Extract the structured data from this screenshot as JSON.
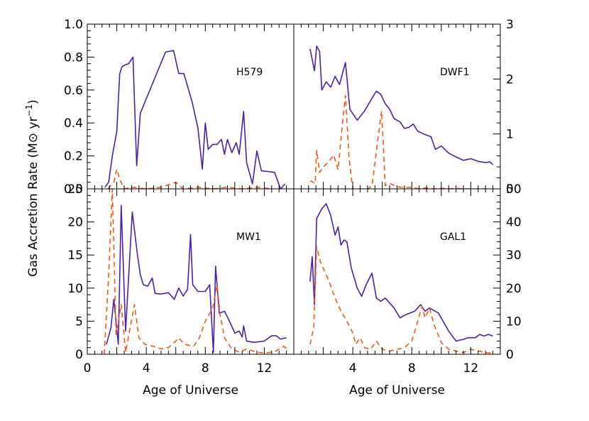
{
  "figure": {
    "ylabel_prefix": "Gas Accretion Rate (M",
    "ylabel_sun": "⊙",
    "ylabel_mid": " yr",
    "ylabel_sup": "−1",
    "ylabel_suffix": ")"
  },
  "chart_data": [
    {
      "type": "line",
      "label": "H579",
      "xlabel": "",
      "xlim": [
        0,
        14
      ],
      "ylim": [
        0,
        1.0
      ],
      "y_axis_side": "left",
      "yticks": [
        "0.0",
        "0.2",
        "0.4",
        "0.6",
        "0.8",
        "1.0"
      ],
      "ytick_values": [
        0,
        0.2,
        0.4,
        0.6,
        0.8,
        1.0
      ],
      "series": [
        {
          "style": "solid",
          "color": "#4a1fb5",
          "x": [
            1.2,
            1.45,
            1.7,
            2.0,
            2.2,
            2.35,
            2.5,
            2.8,
            3.1,
            3.35,
            3.6,
            5.3,
            5.85,
            6.2,
            6.55,
            7.1,
            7.5,
            7.8,
            8.0,
            8.2,
            8.5,
            8.8,
            9.1,
            9.3,
            9.5,
            9.8,
            10.1,
            10.3,
            10.6,
            10.8,
            11.2,
            11.5,
            11.8,
            12.7,
            13.1,
            13.4
          ],
          "y": [
            0.01,
            0.04,
            0.2,
            0.35,
            0.7,
            0.74,
            0.75,
            0.76,
            0.8,
            0.14,
            0.46,
            0.83,
            0.84,
            0.7,
            0.7,
            0.53,
            0.37,
            0.12,
            0.4,
            0.24,
            0.27,
            0.27,
            0.3,
            0.21,
            0.3,
            0.22,
            0.28,
            0.21,
            0.47,
            0.16,
            0.03,
            0.23,
            0.11,
            0.1,
            0.0,
            0.03
          ]
        },
        {
          "style": "dashed",
          "color": "#ff5511",
          "x": [
            1.4,
            1.8,
            2.0,
            2.2,
            2.5,
            3.0,
            4.0,
            5.0,
            6.0,
            6.5,
            7.5,
            8.5,
            9.5,
            10.5,
            11.5,
            12.5
          ],
          "y": [
            0.0,
            0.04,
            0.12,
            0.06,
            0.0,
            0.01,
            0.0,
            0.01,
            0.04,
            0.0,
            0.01,
            0.0,
            0.01,
            0.0,
            0.01,
            0.0
          ]
        }
      ]
    },
    {
      "type": "line",
      "label": "DWF1",
      "xlabel": "",
      "xlim": [
        0,
        14
      ],
      "ylim": [
        0,
        3
      ],
      "y_axis_side": "right",
      "yticks": [
        "0",
        "1",
        "2",
        "3"
      ],
      "ytick_values": [
        0,
        1,
        2,
        3
      ],
      "series": [
        {
          "style": "solid",
          "color": "#4a1fb5",
          "x": [
            1.1,
            1.4,
            1.55,
            1.75,
            1.9,
            2.2,
            2.5,
            2.8,
            3.1,
            3.5,
            3.8,
            4.3,
            4.8,
            5.3,
            5.6,
            5.9,
            6.2,
            6.5,
            6.8,
            7.2,
            7.5,
            7.8,
            8.1,
            8.4,
            8.8,
            9.0,
            9.3,
            9.6,
            10.0,
            10.5,
            11.0,
            11.5,
            12.0,
            12.5,
            13.0,
            13.3,
            13.5
          ],
          "y": [
            2.55,
            2.15,
            2.6,
            2.5,
            1.8,
            1.95,
            1.85,
            2.05,
            1.9,
            2.3,
            1.45,
            1.25,
            1.42,
            1.65,
            1.78,
            1.72,
            1.55,
            1.45,
            1.28,
            1.22,
            1.1,
            1.12,
            1.18,
            1.05,
            1.0,
            0.98,
            0.95,
            0.72,
            0.78,
            0.65,
            0.58,
            0.52,
            0.55,
            0.5,
            0.48,
            0.49,
            0.44
          ]
        },
        {
          "style": "dashed",
          "color": "#ff5511",
          "x": [
            1.1,
            1.45,
            1.55,
            1.75,
            2.0,
            2.4,
            2.7,
            3.0,
            3.3,
            3.5,
            3.75,
            4.0,
            4.5,
            5.0,
            5.3,
            5.7,
            5.95,
            6.2,
            6.5,
            7.0,
            7.5,
            8.0,
            8.5,
            9.0,
            9.5,
            10.0,
            10.5,
            11.0,
            11.5,
            12.0,
            12.5,
            13.0
          ],
          "y": [
            0.15,
            0.1,
            0.7,
            0.3,
            0.4,
            0.5,
            0.62,
            0.35,
            1.2,
            1.7,
            0.55,
            0.0,
            0.0,
            0.0,
            0.05,
            0.9,
            1.42,
            0.06,
            0.1,
            0.04,
            0.02,
            0.03,
            0.0,
            0.02,
            0.0,
            0.01,
            0.0,
            0.01,
            0.0,
            0.0,
            0.0,
            0.0
          ]
        }
      ]
    },
    {
      "type": "line",
      "label": "MW1",
      "xlabel": "Age of Universe",
      "xlim": [
        0,
        14
      ],
      "ylim": [
        0,
        25
      ],
      "y_axis_side": "left",
      "xticks": [
        "0",
        "4",
        "8",
        "12"
      ],
      "xtick_values": [
        0,
        4,
        8,
        12
      ],
      "yticks": [
        "0",
        "5",
        "10",
        "15",
        "20",
        "25"
      ],
      "ytick_values": [
        0,
        5,
        10,
        15,
        20,
        25
      ],
      "series": [
        {
          "style": "solid",
          "color": "#4a1fb5",
          "x": [
            1.3,
            1.6,
            1.8,
            2.1,
            2.3,
            2.6,
            3.05,
            3.4,
            3.6,
            3.8,
            4.1,
            4.4,
            4.6,
            5.0,
            5.5,
            5.9,
            6.2,
            6.5,
            6.8,
            7.0,
            7.15,
            7.5,
            8.0,
            8.3,
            8.55,
            8.7,
            8.95,
            9.3,
            9.6,
            10.0,
            10.3,
            10.5,
            10.6,
            10.8,
            11.3,
            12.0,
            12.5,
            12.8,
            13.1,
            13.5
          ],
          "y": [
            1.5,
            4.0,
            8.3,
            1.5,
            22.5,
            3.5,
            21.5,
            15.0,
            12.0,
            10.5,
            10.3,
            11.5,
            9.2,
            9.1,
            9.3,
            8.3,
            10.0,
            8.8,
            9.8,
            18.1,
            10.5,
            9.5,
            9.5,
            10.5,
            0.3,
            13.3,
            6.2,
            6.5,
            5.2,
            3.2,
            3.5,
            2.6,
            4.3,
            2.0,
            1.8,
            2.0,
            2.8,
            2.8,
            2.3,
            2.5
          ]
        },
        {
          "style": "dashed",
          "color": "#ff5511",
          "x": [
            1.15,
            1.45,
            1.7,
            1.95,
            2.3,
            2.6,
            2.9,
            3.2,
            3.5,
            3.9,
            4.5,
            5.0,
            5.5,
            6.0,
            6.2,
            6.6,
            7.2,
            7.6,
            8.0,
            8.5,
            8.8,
            9.0,
            9.3,
            9.8,
            10.3,
            10.8,
            11.5,
            12.2,
            12.8,
            13.3,
            13.6
          ],
          "y": [
            0.0,
            12.0,
            25.0,
            3.0,
            7.5,
            0.3,
            4.0,
            7.5,
            2.5,
            1.5,
            1.2,
            0.8,
            1.0,
            2.0,
            2.5,
            1.5,
            1.2,
            2.5,
            5.0,
            7.0,
            10.5,
            6.0,
            2.5,
            0.8,
            0.3,
            0.8,
            0.3,
            0.2,
            0.5,
            1.2,
            0.8
          ]
        }
      ]
    },
    {
      "type": "line",
      "label": "GAL1",
      "xlabel": "Age of Universe",
      "xlim": [
        0,
        14
      ],
      "ylim": [
        0,
        50
      ],
      "y_axis_side": "right",
      "xticks": [
        "4",
        "8",
        "12"
      ],
      "xtick_values": [
        4,
        8,
        12
      ],
      "yticks": [
        "0",
        "10",
        "20",
        "30",
        "40",
        "50"
      ],
      "ytick_values": [
        0,
        10,
        20,
        30,
        40,
        50
      ],
      "series": [
        {
          "style": "solid",
          "color": "#4a1fb5",
          "x": [
            1.1,
            1.25,
            1.4,
            1.55,
            1.9,
            2.2,
            2.5,
            2.8,
            3.0,
            3.2,
            3.4,
            3.6,
            3.9,
            4.3,
            4.6,
            4.9,
            5.3,
            5.6,
            5.9,
            6.2,
            6.5,
            6.8,
            7.2,
            7.6,
            8.2,
            8.6,
            8.9,
            9.2,
            9.8,
            10.5,
            11.0,
            11.5,
            11.8,
            12.3,
            12.6,
            12.9,
            13.2,
            13.5
          ],
          "y": [
            22.0,
            29.5,
            15.0,
            41.0,
            44.0,
            45.5,
            42.0,
            36.0,
            38.5,
            33.0,
            34.5,
            34.0,
            26.0,
            20.0,
            17.5,
            21.0,
            24.5,
            17.0,
            16.0,
            17.0,
            15.5,
            14.0,
            11.0,
            12.0,
            13.0,
            15.0,
            13.0,
            14.0,
            12.5,
            7.0,
            4.0,
            4.5,
            5.0,
            5.0,
            6.0,
            5.5,
            6.0,
            5.5
          ]
        },
        {
          "style": "dashed",
          "color": "#ff5511",
          "x": [
            1.1,
            1.35,
            1.55,
            1.8,
            2.1,
            2.4,
            2.8,
            3.2,
            3.6,
            4.0,
            4.2,
            4.5,
            4.8,
            5.2,
            5.6,
            6.0,
            6.5,
            7.0,
            7.5,
            8.0,
            8.4,
            8.7,
            8.9,
            9.2,
            9.5,
            10.0,
            10.5,
            11.0,
            11.5,
            12.0,
            12.5,
            13.0,
            13.5
          ],
          "y": [
            3.0,
            8.0,
            32.5,
            28.0,
            25.0,
            22.0,
            17.0,
            13.0,
            10.0,
            6.5,
            3.0,
            5.0,
            2.0,
            1.5,
            4.0,
            1.5,
            1.0,
            1.5,
            2.0,
            4.0,
            10.0,
            14.5,
            11.0,
            14.0,
            9.0,
            3.5,
            1.5,
            1.0,
            0.5,
            1.5,
            1.0,
            0.5,
            0.3
          ]
        }
      ]
    }
  ]
}
